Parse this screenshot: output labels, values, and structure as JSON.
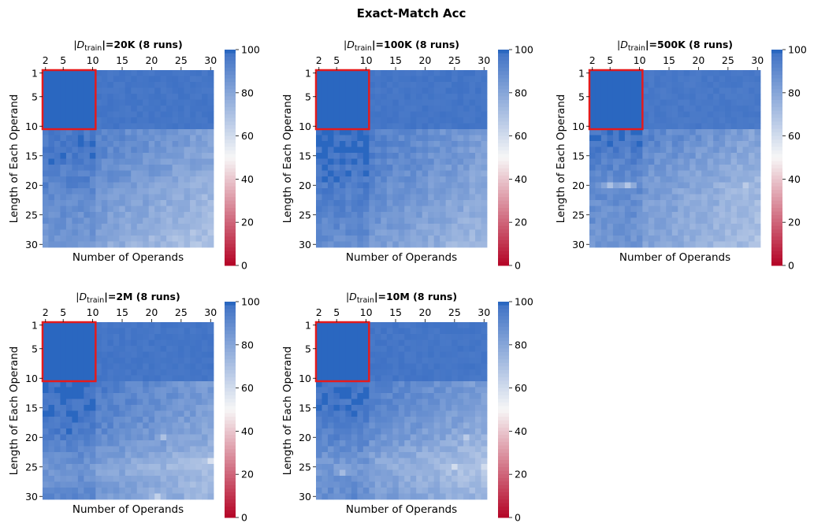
{
  "title": "Exact-Match Acc",
  "colors": {
    "low": "#b40426",
    "mid": "#f7f7f7",
    "high": "#3b6fc4",
    "saturated": "#2a67c0",
    "highlight": "#e41a1c"
  },
  "chart_data": [
    {
      "type": "heatmap",
      "title_prefix": "|D",
      "title_sub": "train",
      "title_suffix": "|=20K (8 runs)",
      "xlabel": "Number of Operands",
      "ylabel": "Length of Each Operand",
      "x_range": [
        2,
        30
      ],
      "y_range": [
        1,
        30
      ],
      "xticks": [
        2,
        5,
        10,
        15,
        20,
        25,
        30
      ],
      "yticks": [
        1,
        5,
        10,
        15,
        20,
        25,
        30
      ],
      "colorbar_ticks": [
        0,
        20,
        40,
        60,
        80,
        100
      ],
      "vlim": [
        0,
        100
      ],
      "highlight_box": {
        "x": [
          2,
          10
        ],
        "y": [
          1,
          10
        ]
      },
      "values": {
        "region_x2_10_y1_10": 100,
        "region_x11_30_y1_10": 99,
        "row_mean_by_length": {
          "12": 93,
          "15": 92,
          "20": 88,
          "25": 84,
          "30": 80
        },
        "col_trend_x11_30": "decreasing from ~95 to ~78",
        "min_cells": [
          {
            "x": 30,
            "y": 30,
            "v": 72
          }
        ]
      }
    },
    {
      "type": "heatmap",
      "title_prefix": "|D",
      "title_sub": "train",
      "title_suffix": "|=100K (8 runs)",
      "xlabel": "Number of Operands",
      "ylabel": "Length of Each Operand",
      "x_range": [
        2,
        30
      ],
      "y_range": [
        1,
        30
      ],
      "xticks": [
        2,
        5,
        10,
        15,
        20,
        25,
        30
      ],
      "yticks": [
        1,
        5,
        10,
        15,
        20,
        25,
        30
      ],
      "colorbar_ticks": [
        0,
        20,
        40,
        60,
        80,
        100
      ],
      "vlim": [
        0,
        100
      ],
      "highlight_box": {
        "x": [
          2,
          10
        ],
        "y": [
          1,
          10
        ]
      },
      "values": {
        "region_x2_10_y1_10": 100,
        "region_x11_30_y1_10": 99,
        "row_mean_by_length": {
          "12": 95,
          "15": 94,
          "20": 91,
          "25": 88,
          "30": 84
        },
        "col_trend_x11_30": "decreasing from ~96 to ~80",
        "min_cells": [
          {
            "x": 30,
            "y": 28,
            "v": 76
          }
        ]
      }
    },
    {
      "type": "heatmap",
      "title_prefix": "|D",
      "title_sub": "train",
      "title_suffix": "|=500K (8 runs)",
      "xlabel": "Number of Operands",
      "ylabel": "Length of Each Operand",
      "x_range": [
        2,
        30
      ],
      "y_range": [
        1,
        30
      ],
      "xticks": [
        2,
        5,
        10,
        15,
        20,
        25,
        30
      ],
      "yticks": [
        1,
        5,
        10,
        15,
        20,
        25,
        30
      ],
      "colorbar_ticks": [
        0,
        20,
        40,
        60,
        80,
        100
      ],
      "vlim": [
        0,
        100
      ],
      "highlight_box": {
        "x": [
          2,
          10
        ],
        "y": [
          1,
          10
        ]
      },
      "values": {
        "region_x2_10_y1_10": 100,
        "region_x11_30_y1_10": 98,
        "row_mean_by_length": {
          "12": 93,
          "15": 90,
          "20": 85,
          "25": 84,
          "30": 82
        },
        "col_trend_x11_30": "decreasing from ~94 to ~72",
        "min_cells": [
          {
            "x": 5,
            "y": 20,
            "v": 70
          },
          {
            "x": 8,
            "y": 20,
            "v": 68
          },
          {
            "x": 28,
            "y": 20,
            "v": 66
          }
        ]
      }
    },
    {
      "type": "heatmap",
      "title_prefix": "|D",
      "title_sub": "train",
      "title_suffix": "|=2M (8 runs)",
      "xlabel": "Number of Operands",
      "ylabel": "Length of Each Operand",
      "x_range": [
        2,
        30
      ],
      "y_range": [
        1,
        30
      ],
      "xticks": [
        2,
        5,
        10,
        15,
        20,
        25,
        30
      ],
      "yticks": [
        1,
        5,
        10,
        15,
        20,
        25,
        30
      ],
      "colorbar_ticks": [
        0,
        20,
        40,
        60,
        80,
        100
      ],
      "vlim": [
        0,
        100
      ],
      "highlight_box": {
        "x": [
          2,
          10
        ],
        "y": [
          1,
          10
        ]
      },
      "values": {
        "region_x2_10_y1_10": 100,
        "region_x11_30_y1_10": 99,
        "row_mean_by_length": {
          "12": 96,
          "15": 94,
          "20": 91,
          "25": 82,
          "30": 86
        },
        "col_trend_x11_30": "decreasing from ~96 to ~78",
        "min_cells": [
          {
            "x": 30,
            "y": 24,
            "v": 58
          },
          {
            "x": 22,
            "y": 20,
            "v": 70
          },
          {
            "x": 21,
            "y": 30,
            "v": 64
          }
        ]
      }
    },
    {
      "type": "heatmap",
      "title_prefix": "|D",
      "title_sub": "train",
      "title_suffix": "|=10M (8 runs)",
      "xlabel": "Number of Operands",
      "ylabel": "Length of Each Operand",
      "x_range": [
        2,
        30
      ],
      "y_range": [
        1,
        30
      ],
      "xticks": [
        2,
        5,
        10,
        15,
        20,
        25,
        30
      ],
      "yticks": [
        1,
        5,
        10,
        15,
        20,
        25,
        30
      ],
      "colorbar_ticks": [
        0,
        20,
        40,
        60,
        80,
        100
      ],
      "vlim": [
        0,
        100
      ],
      "highlight_box": {
        "x": [
          2,
          10
        ],
        "y": [
          1,
          10
        ]
      },
      "values": {
        "region_x2_10_y1_10": 100,
        "region_x11_30_y1_10": 99,
        "row_mean_by_length": {
          "12": 95,
          "15": 93,
          "20": 88,
          "25": 80,
          "30": 86
        },
        "col_trend_x11_30": "decreasing from ~95 to ~70",
        "min_cells": [
          {
            "x": 25,
            "y": 25,
            "v": 60
          },
          {
            "x": 30,
            "y": 25,
            "v": 60
          },
          {
            "x": 27,
            "y": 20,
            "v": 66
          },
          {
            "x": 6,
            "y": 26,
            "v": 72
          }
        ]
      }
    }
  ]
}
